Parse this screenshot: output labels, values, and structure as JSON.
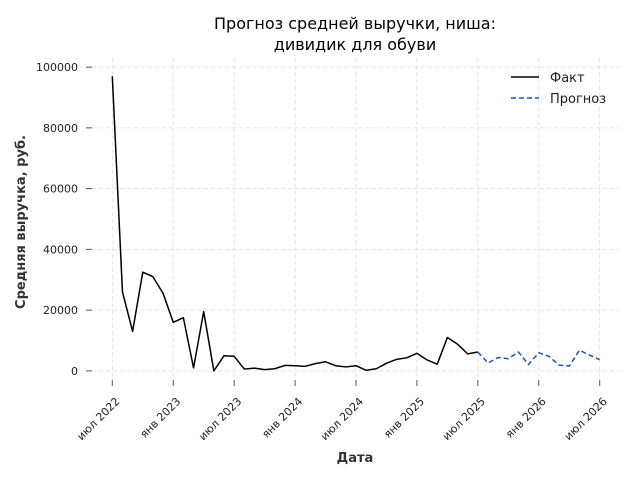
{
  "chart_data": {
    "type": "line",
    "title_lines": [
      "Прогноз средней выручки, ниша:",
      "дивидик для обуви"
    ],
    "xlabel": "Дата",
    "ylabel": "Средняя выручка, руб.",
    "ylim": [
      -3000,
      103000
    ],
    "yticks": [
      0,
      20000,
      40000,
      60000,
      80000,
      100000
    ],
    "xticks": [
      {
        "date": "2022-07",
        "label": "июл 2022"
      },
      {
        "date": "2023-01",
        "label": "янв 2023"
      },
      {
        "date": "2023-07",
        "label": "июл 2023"
      },
      {
        "date": "2024-01",
        "label": "янв 2024"
      },
      {
        "date": "2024-07",
        "label": "июл 2024"
      },
      {
        "date": "2025-01",
        "label": "янв 2025"
      },
      {
        "date": "2025-07",
        "label": "июл 2025"
      },
      {
        "date": "2026-01",
        "label": "янв 2026"
      },
      {
        "date": "2026-07",
        "label": "июл 2026"
      }
    ],
    "xlim": [
      "2022-05",
      "2026-09"
    ],
    "grid": true,
    "legend_position": "top-right",
    "series": [
      {
        "name": "Факт",
        "color": "#000000",
        "style": "solid",
        "points": [
          [
            "2022-07",
            97000
          ],
          [
            "2022-08",
            26000
          ],
          [
            "2022-09",
            13000
          ],
          [
            "2022-10",
            32500
          ],
          [
            "2022-11",
            31000
          ],
          [
            "2022-12",
            25500
          ],
          [
            "2023-01",
            16000
          ],
          [
            "2023-02",
            17500
          ],
          [
            "2023-03",
            1000
          ],
          [
            "2023-04",
            19500
          ],
          [
            "2023-05",
            0
          ],
          [
            "2023-06",
            5000
          ],
          [
            "2023-07",
            4800
          ],
          [
            "2023-08",
            600
          ],
          [
            "2023-09",
            900
          ],
          [
            "2023-10",
            400
          ],
          [
            "2023-11",
            700
          ],
          [
            "2023-12",
            1800
          ],
          [
            "2024-01",
            1700
          ],
          [
            "2024-02",
            1500
          ],
          [
            "2024-03",
            2400
          ],
          [
            "2024-04",
            3000
          ],
          [
            "2024-05",
            1700
          ],
          [
            "2024-06",
            1300
          ],
          [
            "2024-07",
            1700
          ],
          [
            "2024-08",
            200
          ],
          [
            "2024-09",
            700
          ],
          [
            "2024-10",
            2500
          ],
          [
            "2024-11",
            3800
          ],
          [
            "2024-12",
            4300
          ],
          [
            "2025-01",
            5800
          ],
          [
            "2025-02",
            3600
          ],
          [
            "2025-03",
            2200
          ],
          [
            "2025-04",
            11000
          ],
          [
            "2025-05",
            8800
          ],
          [
            "2025-06",
            5600
          ],
          [
            "2025-07",
            6200
          ]
        ]
      },
      {
        "name": "Прогноз",
        "color": "#1f4fc8",
        "style": "dashed",
        "points": [
          [
            "2025-07",
            6200
          ],
          [
            "2025-08",
            2600
          ],
          [
            "2025-09",
            4400
          ],
          [
            "2025-10",
            4000
          ],
          [
            "2025-11",
            6200
          ],
          [
            "2025-12",
            2100
          ],
          [
            "2026-01",
            6000
          ],
          [
            "2026-02",
            4800
          ],
          [
            "2026-03",
            1900
          ],
          [
            "2026-04",
            1600
          ],
          [
            "2026-05",
            6800
          ],
          [
            "2026-06",
            5200
          ],
          [
            "2026-07",
            3700
          ]
        ]
      }
    ]
  }
}
